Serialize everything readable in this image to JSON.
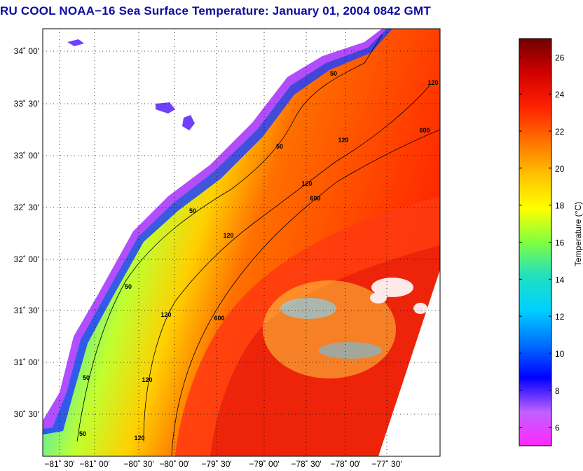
{
  "title": "RU COOL  NOAA−16  Sea Surface Temperature:  January 01, 2004 0842 GMT",
  "map": {
    "lat_labels": [
      "34˚ 00'",
      "33˚ 30'",
      "33˚ 00'",
      "32˚ 30'",
      "32˚ 00'",
      "31˚ 30'",
      "31˚ 00'",
      "30˚ 30'"
    ],
    "lon_labels": [
      "−81˚ 30'",
      "−81˚ 00'",
      "−80˚ 30'",
      "−80˚ 00'",
      "−79˚ 30'",
      "−79˚ 00'",
      "−78˚ 30'",
      "−78˚ 00'",
      "−77˚ 30'"
    ],
    "isobath_labels": [
      "50",
      "50",
      "50",
      "50",
      "50",
      "50",
      "120",
      "120",
      "120",
      "120",
      "120",
      "120",
      "120",
      "600",
      "600",
      "600"
    ],
    "grid": true
  },
  "colorbar": {
    "label": "Temperature (°C)",
    "ticks": [
      "26",
      "24",
      "22",
      "20",
      "18",
      "16",
      "14",
      "12",
      "10",
      "8",
      "6"
    ],
    "range": [
      5,
      27
    ]
  },
  "colors": {
    "land": "#ffffff",
    "title": "#0c0c9e",
    "colormap": [
      "#ff28ff",
      "#c060ff",
      "#0000ff",
      "#0070ff",
      "#00d0ff",
      "#20e0c0",
      "#80ff40",
      "#ffff00",
      "#ffc000",
      "#ff7000",
      "#ff2000",
      "#d00000",
      "#700000"
    ]
  }
}
